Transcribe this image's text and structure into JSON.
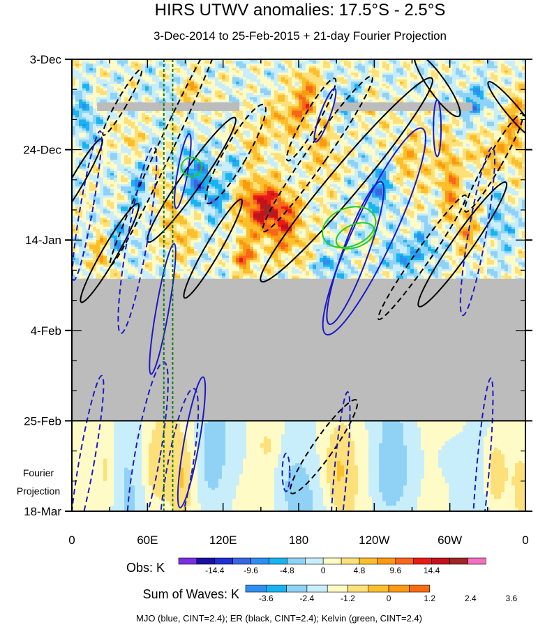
{
  "chart_data": {
    "type": "heatmap",
    "title": "HIRS UTWV anomalies: 17.5°S - 2.5°S",
    "subtitle": "3-Dec-2014 to 25-Feb-2015 + 21-day Fourier Projection",
    "x_axis": {
      "range_deg_east": [
        0,
        360
      ],
      "tick_values_deg_east": [
        0,
        60,
        120,
        180,
        240,
        300,
        360
      ],
      "tick_labels": [
        "0",
        "60E",
        "120E",
        "180",
        "120W",
        "60W",
        "0"
      ]
    },
    "y_axis": {
      "direction": "time increasing downward",
      "range_days_from_start": [
        0,
        105
      ],
      "tick_days": [
        0,
        21,
        42,
        63,
        84,
        105
      ],
      "tick_labels": [
        "3-Dec",
        "24-Dec",
        "14-Jan",
        "4-Feb",
        "25-Feb",
        "18-Mar"
      ]
    },
    "projection_label_lines": [
      "Fourier",
      "Projection"
    ],
    "projection_start_day": 84,
    "missing_data": {
      "color": "#bcbcbc",
      "blocks": [
        {
          "lon": [
            0,
            360
          ],
          "day": [
            51,
            84
          ]
        },
        {
          "lon": [
            20,
            133
          ],
          "day": [
            10,
            12
          ]
        },
        {
          "lon": [
            208,
            318
          ],
          "day": [
            10,
            12
          ]
        }
      ]
    },
    "reference_lines_lon": [
      73,
      80
    ],
    "obs_colorbar": {
      "label": "Obs: K",
      "tick_labels": [
        "-14.4",
        "-9.6",
        "-4.8",
        "0",
        "4.8",
        "9.6",
        "14.4"
      ],
      "colors": [
        "#7b2fe0",
        "#1a0fa0",
        "#1f2fd0",
        "#3a66e0",
        "#2f8ff0",
        "#17b4f0",
        "#8fd2f6",
        "#c9eefb",
        "#fffbc6",
        "#fde07a",
        "#fcbf2c",
        "#fb9a12",
        "#f8661c",
        "#e81b17",
        "#c4121c",
        "#9e2626",
        "#f170c0"
      ]
    },
    "waves_colorbar": {
      "label": "Sum of Waves: K",
      "tick_labels": [
        "-3.6",
        "-2.4",
        "-1.2",
        "0",
        "1.2",
        "2.4",
        "3.6"
      ],
      "colors": [
        "#2f8ff0",
        "#17b4f0",
        "#8fd2f6",
        "#c9eefb",
        "#fffbc6",
        "#fde07a",
        "#fcbf2c",
        "#fb9a12",
        "#f86d10"
      ]
    },
    "contour_series": [
      {
        "name": "MJO",
        "color": "blue",
        "cint": 2.4
      },
      {
        "name": "ER",
        "color": "black",
        "cint": 2.4
      },
      {
        "name": "Kelvin",
        "color": "green",
        "cint": 2.4
      }
    ],
    "footnote": "MJO (blue, CINT=2.4); ER (black, CINT=2.4); Kelvin (green, CINT=2.4)"
  }
}
